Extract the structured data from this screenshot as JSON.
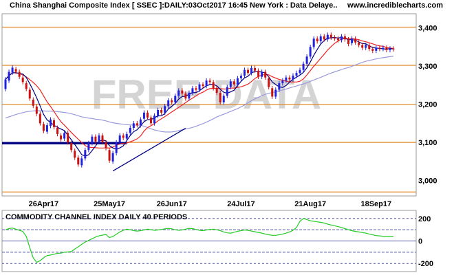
{
  "header": {
    "title": "China Shanghai Composite Index [ SSEC ]:DAILY:03Oct2017 16:45 New York : Data Delaye..",
    "site": "www.incrediblecharts.com"
  },
  "watermark": "FREE DATA",
  "colors": {
    "up_candle": "#2222dd",
    "down_candle": "#cc1111",
    "ma_short": "#000080",
    "ma_mid": "#ee2222",
    "ma_long": "#9999dd",
    "hline": "#e08a2a",
    "trendline": "#000080",
    "cci": "#22cc22",
    "cci_band": "#5555aa"
  },
  "chart_data": [
    {
      "type": "candlestick",
      "title": "China Shanghai Composite Index [ SSEC ]:DAILY:03Oct2017 16:45 New York : Data Delaye..",
      "ylim": [
        2965,
        3430
      ],
      "yticks": [
        3000,
        3100,
        3200,
        3300,
        3400
      ],
      "ytick_labels": [
        "3,000",
        "3,100",
        "3,200",
        "3,300",
        "3,400"
      ],
      "x_tick_labels": [
        {
          "label": "26Apr17",
          "index": 11
        },
        {
          "label": "25May17",
          "index": 30
        },
        {
          "label": "26Jun17",
          "index": 48
        },
        {
          "label": "24Jul17",
          "index": 68
        },
        {
          "label": "21Aug17",
          "index": 88
        },
        {
          "label": "18Sep17",
          "index": 107
        }
      ],
      "horizontal_lines": [
        2970,
        3100,
        3200,
        3302,
        3402
      ],
      "support_line": {
        "from_index": 0,
        "to_index": 35,
        "value": 3098
      },
      "trendlines": [
        {
          "from": [
            31,
            3025
          ],
          "to": [
            52,
            3137
          ]
        }
      ],
      "candles_oc": [
        [
          3240,
          3265
        ],
        [
          3262,
          3285
        ],
        [
          3283,
          3296
        ],
        [
          3292,
          3285
        ],
        [
          3285,
          3272
        ],
        [
          3270,
          3258
        ],
        [
          3255,
          3240
        ],
        [
          3238,
          3215
        ],
        [
          3212,
          3196
        ],
        [
          3194,
          3175
        ],
        [
          3175,
          3150
        ],
        [
          3148,
          3130
        ],
        [
          3128,
          3145
        ],
        [
          3143,
          3160
        ],
        [
          3158,
          3140
        ],
        [
          3138,
          3122
        ],
        [
          3118,
          3108
        ],
        [
          3110,
          3125
        ],
        [
          3125,
          3100
        ],
        [
          3098,
          3080
        ],
        [
          3078,
          3060
        ],
        [
          3060,
          3042
        ],
        [
          3040,
          3058
        ],
        [
          3058,
          3080
        ],
        [
          3080,
          3098
        ],
        [
          3098,
          3115
        ],
        [
          3115,
          3102
        ],
        [
          3102,
          3118
        ],
        [
          3118,
          3100
        ],
        [
          3100,
          3085
        ],
        [
          3080,
          3052
        ],
        [
          3050,
          3072
        ],
        [
          3072,
          3100
        ],
        [
          3100,
          3118
        ],
        [
          3118,
          3112
        ],
        [
          3110,
          3122
        ],
        [
          3125,
          3138
        ],
        [
          3138,
          3150
        ],
        [
          3150,
          3145
        ],
        [
          3145,
          3160
        ],
        [
          3162,
          3178
        ],
        [
          3178,
          3165
        ],
        [
          3165,
          3150
        ],
        [
          3150,
          3170
        ],
        [
          3170,
          3185
        ],
        [
          3185,
          3178
        ],
        [
          3178,
          3195
        ],
        [
          3195,
          3210
        ],
        [
          3210,
          3205
        ],
        [
          3205,
          3222
        ],
        [
          3222,
          3236
        ],
        [
          3236,
          3228
        ],
        [
          3228,
          3215
        ],
        [
          3215,
          3230
        ],
        [
          3230,
          3242
        ],
        [
          3242,
          3238
        ],
        [
          3238,
          3252
        ],
        [
          3252,
          3248
        ],
        [
          3248,
          3262
        ],
        [
          3262,
          3258
        ],
        [
          3258,
          3242
        ],
        [
          3242,
          3230
        ],
        [
          3230,
          3205
        ],
        [
          3205,
          3222
        ],
        [
          3222,
          3245
        ],
        [
          3245,
          3260
        ],
        [
          3260,
          3252
        ],
        [
          3252,
          3268
        ],
        [
          3268,
          3275
        ],
        [
          3275,
          3290
        ],
        [
          3290,
          3282
        ],
        [
          3282,
          3295
        ],
        [
          3295,
          3288
        ],
        [
          3288,
          3272
        ],
        [
          3272,
          3285
        ],
        [
          3285,
          3270
        ],
        [
          3268,
          3245
        ],
        [
          3242,
          3220
        ],
        [
          3220,
          3238
        ],
        [
          3238,
          3255
        ],
        [
          3255,
          3262
        ],
        [
          3262,
          3270
        ],
        [
          3270,
          3265
        ],
        [
          3265,
          3275
        ],
        [
          3275,
          3282
        ],
        [
          3282,
          3290
        ],
        [
          3290,
          3306
        ],
        [
          3306,
          3325
        ],
        [
          3325,
          3350
        ],
        [
          3350,
          3372
        ],
        [
          3372,
          3365
        ],
        [
          3365,
          3378
        ],
        [
          3378,
          3370
        ],
        [
          3370,
          3382
        ],
        [
          3382,
          3375
        ],
        [
          3375,
          3372
        ],
        [
          3372,
          3368
        ],
        [
          3368,
          3378
        ],
        [
          3378,
          3370
        ],
        [
          3370,
          3358
        ],
        [
          3360,
          3372
        ],
        [
          3372,
          3362
        ],
        [
          3362,
          3355
        ],
        [
          3355,
          3348
        ],
        [
          3348,
          3355
        ],
        [
          3355,
          3345
        ],
        [
          3345,
          3340
        ],
        [
          3340,
          3348
        ],
        [
          3348,
          3345
        ],
        [
          3345,
          3348
        ],
        [
          3348,
          3342
        ],
        [
          3342,
          3346
        ],
        [
          3346,
          3344
        ]
      ],
      "series_labels": []
    },
    {
      "type": "line",
      "title": "COMMODITY CHANNEL INDEX DAILY 40 PERIODS",
      "ylim": [
        -260,
        260
      ],
      "yticks": [
        200,
        0,
        -200
      ],
      "ytick_labels": [
        "200",
        "0",
        "-200"
      ],
      "bands": [
        200,
        100,
        -100,
        -200
      ],
      "values": [
        100,
        110,
        115,
        105,
        95,
        85,
        40,
        -60,
        -150,
        -190,
        -175,
        -150,
        -130,
        -125,
        -118,
        -110,
        -108,
        -100,
        -98,
        -95,
        -72,
        -52,
        -30,
        -10,
        5,
        20,
        35,
        45,
        52,
        58,
        30,
        40,
        60,
        80,
        95,
        105,
        100,
        92,
        88,
        92,
        98,
        105,
        100,
        95,
        98,
        102,
        108,
        112,
        108,
        100,
        95,
        98,
        105,
        112,
        110,
        102,
        95,
        92,
        98,
        103,
        105,
        100,
        92,
        80,
        72,
        70,
        78,
        86,
        92,
        98,
        95,
        88,
        82,
        76,
        70,
        62,
        55,
        50,
        50,
        55,
        62,
        70,
        80,
        95,
        120,
        175,
        200,
        190,
        180,
        175,
        170,
        165,
        160,
        150,
        142,
        135,
        128,
        120,
        110,
        100,
        92,
        85,
        80,
        75,
        70,
        62,
        55,
        48,
        45,
        42,
        40,
        40,
        40
      ]
    }
  ]
}
